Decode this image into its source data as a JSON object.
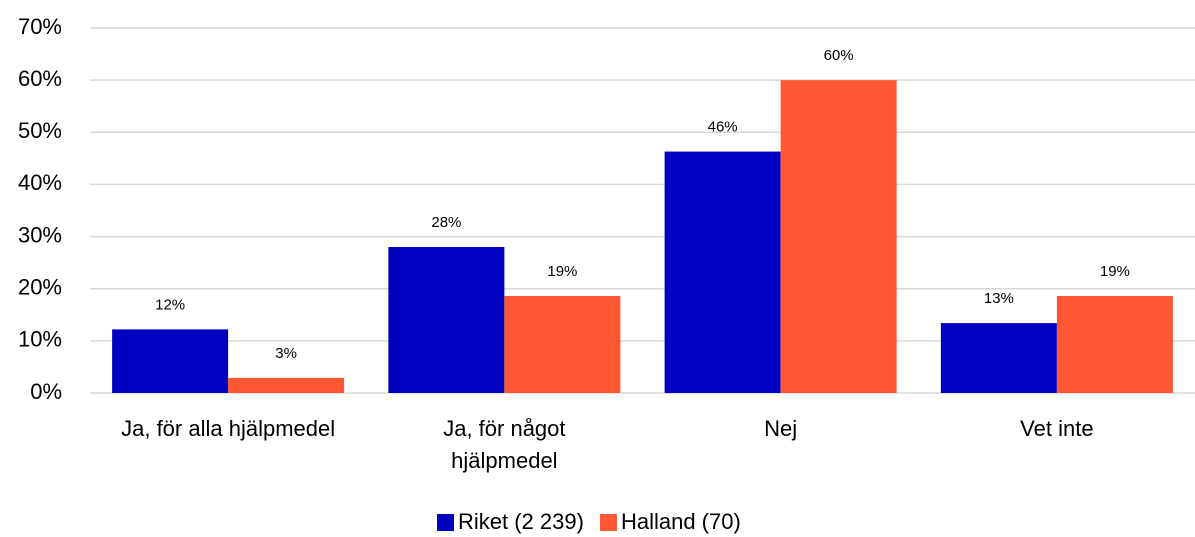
{
  "chart_data": {
    "type": "bar",
    "categories": [
      "Ja, för alla hjälpmedel",
      "Ja, för något hjälpmedel",
      "Nej",
      "Vet inte"
    ],
    "series": [
      {
        "name": "Riket (2 239)",
        "color": "#0000c0",
        "values": [
          12.2,
          28,
          46.3,
          13.4
        ],
        "value_labels": [
          "12%",
          "28%",
          "46%",
          "13%"
        ]
      },
      {
        "name": "Halland (70)",
        "color": "#ff5733",
        "values": [
          2.9,
          18.6,
          60,
          18.6
        ],
        "value_labels": [
          "3%",
          "19%",
          "60%",
          "19%"
        ]
      }
    ],
    "ylim": [
      0,
      70
    ],
    "yticks": [
      {
        "value": 0,
        "label": "0%"
      },
      {
        "value": 10,
        "label": "10%"
      },
      {
        "value": 20,
        "label": "20%"
      },
      {
        "value": 30,
        "label": "30%"
      },
      {
        "value": 40,
        "label": "40%"
      },
      {
        "value": 50,
        "label": "50%"
      },
      {
        "value": 60,
        "label": "60%"
      },
      {
        "value": 70,
        "label": "70%"
      }
    ],
    "grid": true,
    "legend": "bottom"
  }
}
